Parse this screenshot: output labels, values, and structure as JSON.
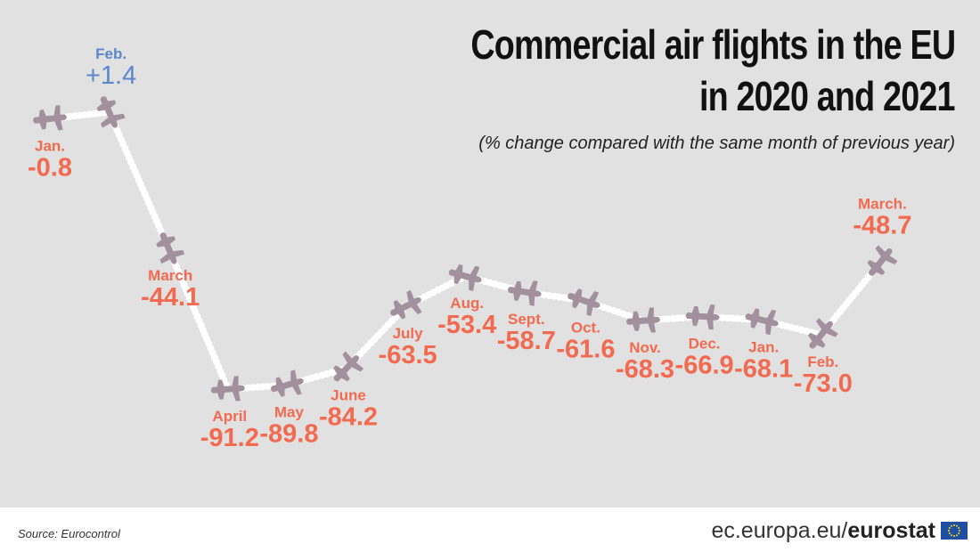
{
  "chart_data": {
    "type": "line",
    "title": "Commercial air flights in the EU in 2020 and 2021",
    "title_lines": [
      "Commercial air flights in the EU",
      "in 2020 and 2021"
    ],
    "subtitle": "(% change compared with the same month of previous year)",
    "unit": "% change",
    "ylim": [
      -100,
      10
    ],
    "categories": [
      "Jan.",
      "Feb.",
      "March",
      "April",
      "May",
      "June",
      "July",
      "Aug.",
      "Sept.",
      "Oct.",
      "Nov.",
      "Dec.",
      "Jan.",
      "Feb.",
      "March."
    ],
    "values": [
      -0.8,
      1.4,
      -44.1,
      -91.2,
      -89.8,
      -84.2,
      -63.5,
      -53.4,
      -58.7,
      -61.6,
      -68.3,
      -66.9,
      -68.1,
      -73.0,
      -48.7
    ],
    "value_labels": [
      "-0.8",
      "+1.4",
      "-44.1",
      "-91.2",
      "-89.8",
      "-84.2",
      "-63.5",
      "-53.4",
      "-58.7",
      "-61.6",
      "-68.3",
      "-66.9",
      "-68.1",
      "-73.0",
      "-48.7"
    ],
    "years": [
      2020,
      2020,
      2020,
      2020,
      2020,
      2020,
      2020,
      2020,
      2020,
      2020,
      2020,
      2020,
      2021,
      2021,
      2021
    ],
    "colors": {
      "negative": "#f26a4f",
      "positive": "#5b87cc",
      "plane": "#a3909e",
      "trail": "#ffffff",
      "background": "#e1e1e1"
    }
  },
  "footer": {
    "source": "Source: Eurocontrol",
    "brand_prefix": "ec.europa.eu/",
    "brand_bold": "eurostat"
  }
}
